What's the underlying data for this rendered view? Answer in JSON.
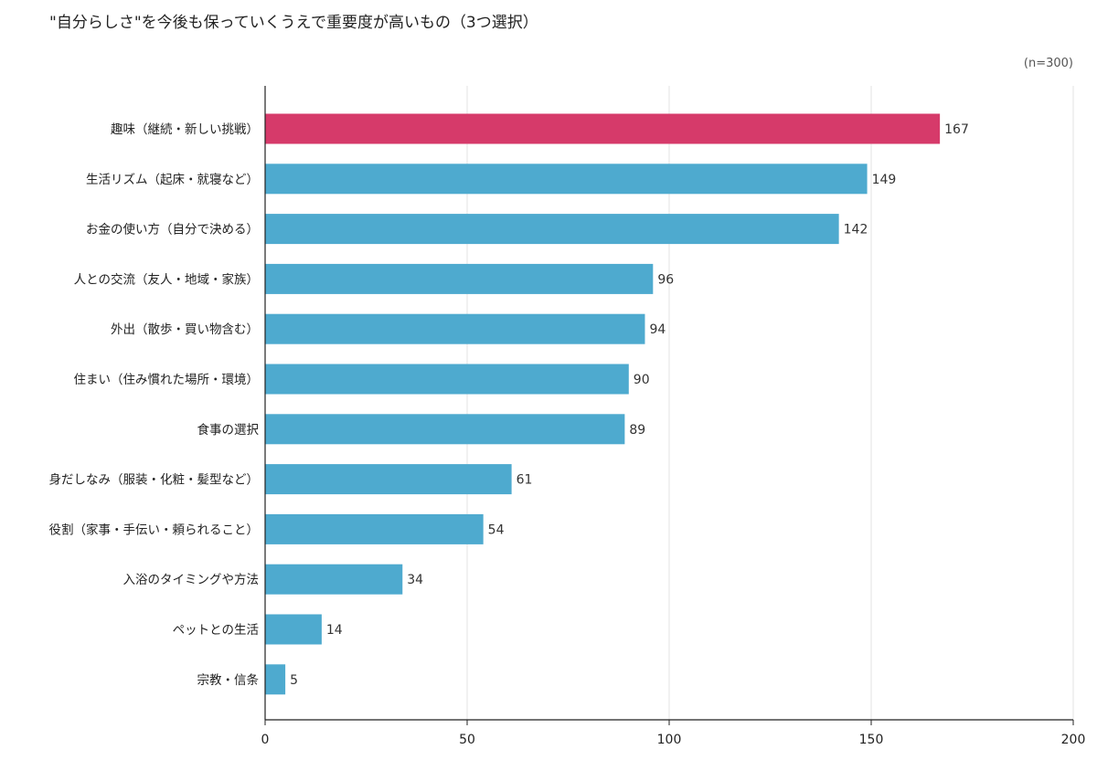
{
  "title": "\"自分らしさ\"を今後も保っていくうえで重要度が高いもの（3つ選択）",
  "sample_note": "(n=300)",
  "colors": {
    "highlight": "#D63A6A",
    "bar": "#4EAACF",
    "grid": "#E3E3E3",
    "axis": "#222222"
  },
  "chart_data": {
    "type": "bar",
    "orientation": "horizontal",
    "title": "\"自分らしさ\"を今後も保っていくうえで重要度が高いもの（3つ選択）",
    "xlim": [
      0,
      200
    ],
    "xticks": [
      0,
      50,
      100,
      150,
      200
    ],
    "grid": true,
    "categories": [
      "趣味（継続・新しい挑戦）",
      "生活リズム（起床・就寝など）",
      "お金の使い方（自分で決める）",
      "人との交流（友人・地域・家族）",
      "外出（散歩・買い物含む）",
      "住まい（住み慣れた場所・環境）",
      "食事の選択",
      "身だしなみ（服装・化粧・髪型など）",
      "役割（家事・手伝い・頼られること）",
      "入浴のタイミングや方法",
      "ペットとの生活",
      "宗教・信条"
    ],
    "values": [
      167,
      149,
      142,
      96,
      94,
      90,
      89,
      61,
      54,
      34,
      14,
      5
    ],
    "highlight_index": 0
  }
}
